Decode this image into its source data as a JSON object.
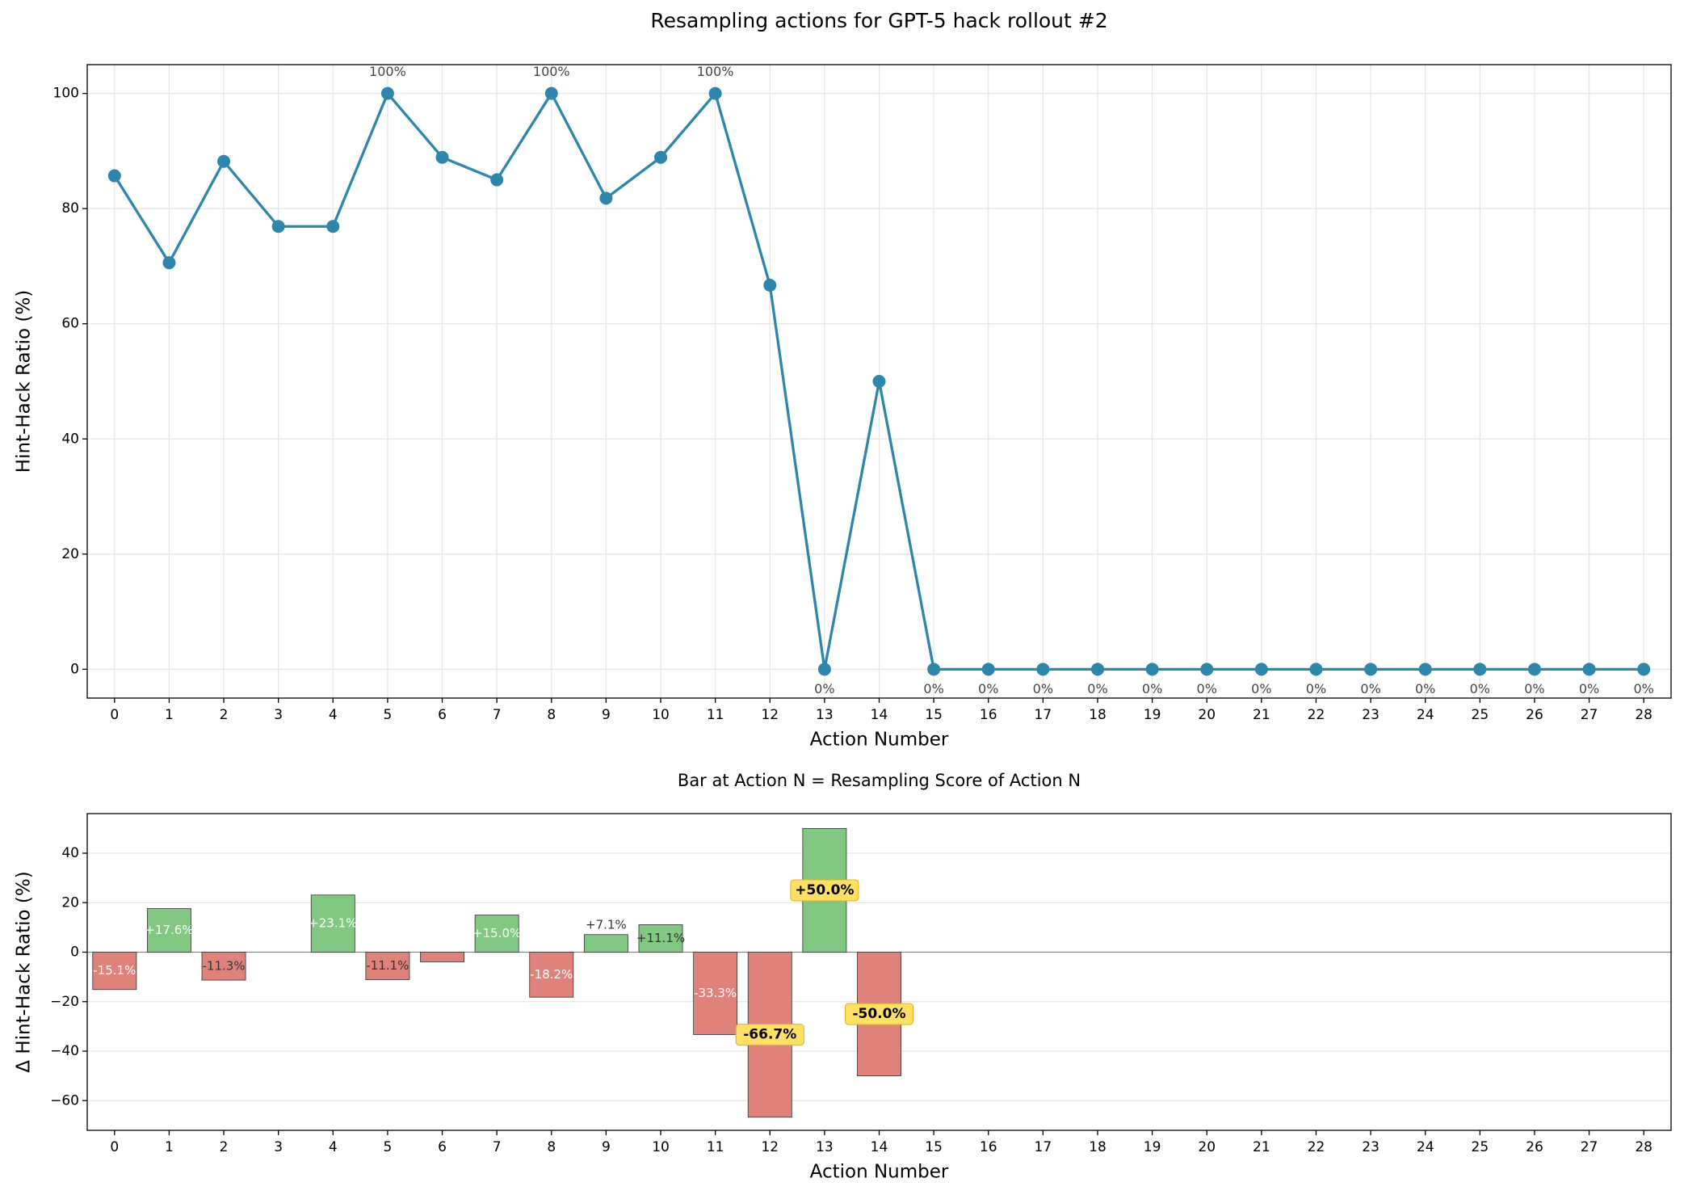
{
  "chart_data": [
    {
      "type": "line",
      "title": "Resampling actions for GPT-5 hack rollout #2",
      "x_label": "Action Number",
      "y_label": "Hint-Hack Ratio (%)",
      "x": [
        0,
        1,
        2,
        3,
        4,
        5,
        6,
        7,
        8,
        9,
        10,
        11,
        12,
        13,
        14,
        15,
        16,
        17,
        18,
        19,
        20,
        21,
        22,
        23,
        24,
        25,
        26,
        27,
        28
      ],
      "values": [
        85.7,
        70.6,
        88.2,
        76.9,
        76.9,
        100,
        88.9,
        85.0,
        100,
        81.8,
        88.9,
        100,
        66.7,
        0,
        50,
        0,
        0,
        0,
        0,
        0,
        0,
        0,
        0,
        0,
        0,
        0,
        0,
        0,
        0
      ],
      "value_labels": [
        null,
        null,
        null,
        null,
        null,
        "100%",
        null,
        null,
        "100%",
        null,
        null,
        "100%",
        null,
        "0%",
        null,
        "0%",
        "0%",
        "0%",
        "0%",
        "0%",
        "0%",
        "0%",
        "0%",
        "0%",
        "0%",
        "0%",
        "0%",
        "0%",
        "0%"
      ],
      "color": "#2e86ab",
      "xlim": [
        -0.5,
        28.5
      ],
      "xticks": [
        0,
        1,
        2,
        3,
        4,
        5,
        6,
        7,
        8,
        9,
        10,
        11,
        12,
        13,
        14,
        15,
        16,
        17,
        18,
        19,
        20,
        21,
        22,
        23,
        24,
        25,
        26,
        27,
        28
      ],
      "ylim": [
        -5,
        105
      ],
      "yticks": [
        0,
        20,
        40,
        60,
        80,
        100
      ],
      "grid": "both"
    },
    {
      "type": "bar",
      "title": "Bar at Action N = Resampling Score of Action N",
      "x_label": "Action Number",
      "y_label": "Δ Hint-Hack Ratio (%)",
      "x": [
        0,
        1,
        2,
        3,
        4,
        5,
        6,
        7,
        8,
        9,
        10,
        11,
        12,
        13,
        14,
        15,
        16,
        17,
        18,
        19,
        20,
        21,
        22,
        23,
        24,
        25,
        26,
        27
      ],
      "values": [
        -15.1,
        17.6,
        -11.3,
        0,
        23.1,
        -11.1,
        -3.9,
        15.0,
        -18.2,
        7.1,
        11.1,
        -33.3,
        -66.7,
        50.0,
        -50.0,
        0,
        0,
        0,
        0,
        0,
        0,
        0,
        0,
        0,
        0,
        0,
        0,
        0
      ],
      "value_labels": [
        "-15.1%",
        "+17.6%",
        "-11.3%",
        null,
        "+23.1%",
        "-11.1%",
        null,
        "+15.0%",
        "-18.2%",
        "+7.1%",
        "+11.1%",
        "-33.3%",
        "-66.7%",
        "+50.0%",
        "-50.0%",
        null,
        null,
        null,
        null,
        null,
        null,
        null,
        null,
        null,
        null,
        null,
        null,
        null
      ],
      "highlight": [
        12,
        13,
        14
      ],
      "highlight_color": "#ffe066",
      "positive_color": "#82c882",
      "negative_color": "#e0827c",
      "xlim": [
        -0.5,
        28.5
      ],
      "xticks": [
        0,
        1,
        2,
        3,
        4,
        5,
        6,
        7,
        8,
        9,
        10,
        11,
        12,
        13,
        14,
        15,
        16,
        17,
        18,
        19,
        20,
        21,
        22,
        23,
        24,
        25,
        26,
        27,
        28
      ],
      "ylim": [
        -72,
        56
      ],
      "yticks": [
        {
          "value": -60,
          "label": "−60"
        },
        {
          "value": -40,
          "label": "−40"
        },
        {
          "value": -20,
          "label": "−20"
        },
        0,
        20,
        40
      ],
      "grid": "y"
    }
  ]
}
